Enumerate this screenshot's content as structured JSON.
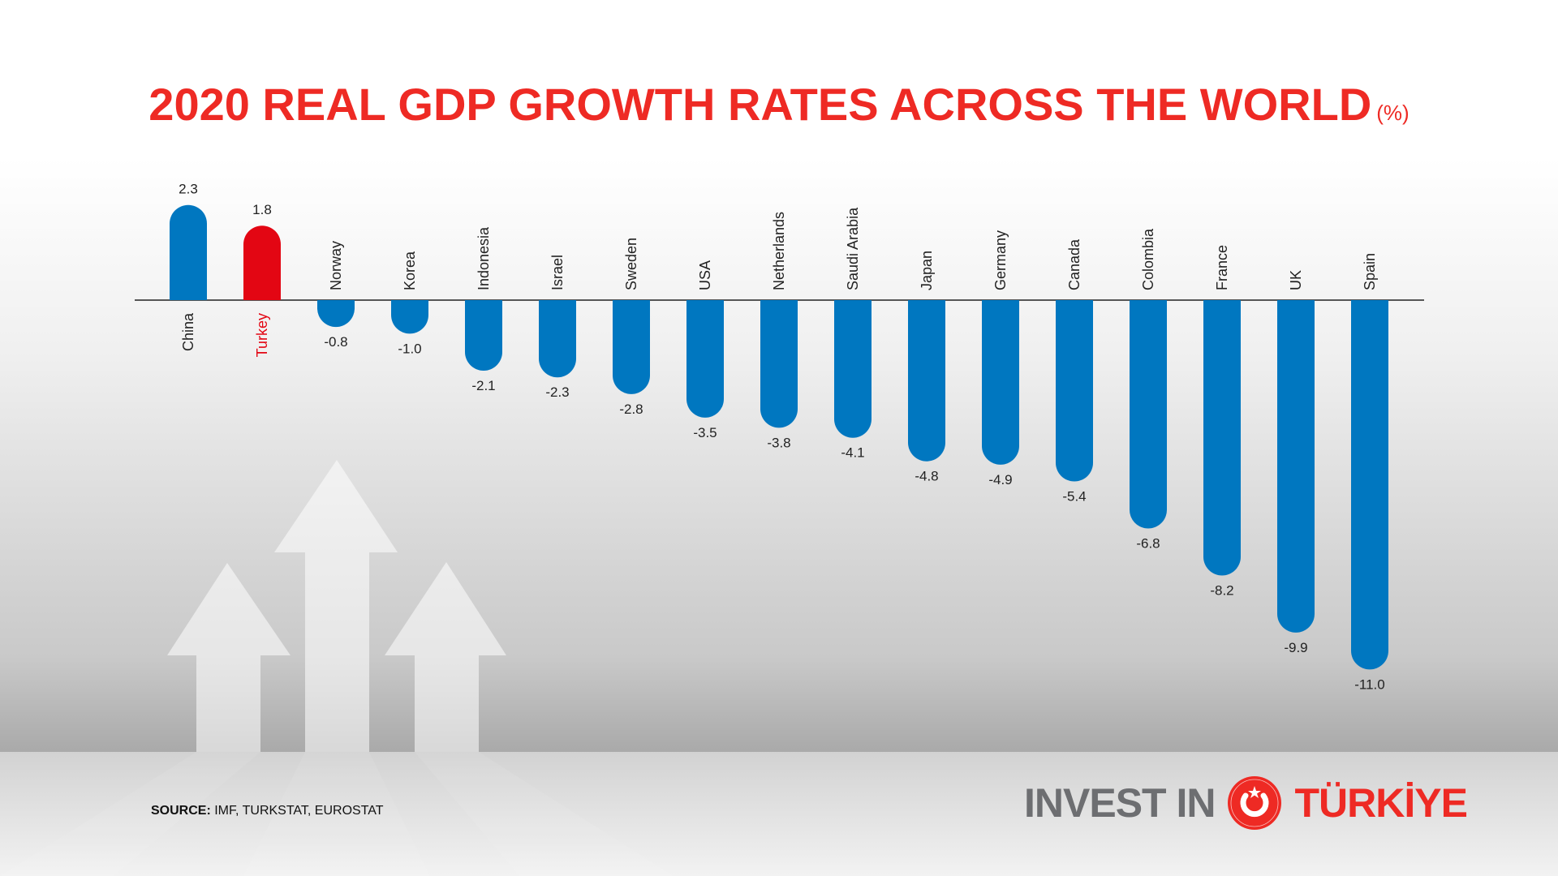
{
  "title": "2020 REAL GDP GROWTH RATES ACROSS THE WORLD",
  "title_unit": "(%)",
  "source": {
    "label": "SOURCE:",
    "text": "IMF, TURKSTAT, EUROSTAT"
  },
  "logo": {
    "left": "INVEST IN",
    "right": "TÜRKİYE"
  },
  "colors": {
    "title": "#ee2a24",
    "bar": "#0077c0",
    "highlight": "#e30613",
    "logo_gray": "#6d6e71"
  },
  "chart_data": {
    "type": "bar",
    "title": "2020 REAL GDP GROWTH RATES ACROSS THE WORLD",
    "ylabel": "(%)",
    "categories": [
      "China",
      "Turkey",
      "Norway",
      "Korea",
      "Indonesia",
      "Israel",
      "Sweden",
      "USA",
      "Netherlands",
      "Saudi Arabia",
      "Japan",
      "Germany",
      "Canada",
      "Colombia",
      "France",
      "UK",
      "Spain"
    ],
    "values": [
      2.3,
      1.8,
      -0.8,
      -1.0,
      -2.1,
      -2.3,
      -2.8,
      -3.5,
      -3.8,
      -4.1,
      -4.8,
      -4.9,
      -5.4,
      -6.8,
      -8.2,
      -9.9,
      -11.0
    ],
    "value_labels": [
      "2.3",
      "1.8",
      "-0.8",
      "-1.0",
      "-2.1",
      "-2.3",
      "-2.8",
      "-3.5",
      "-3.8",
      "-4.1",
      "-4.8",
      "-4.9",
      "-5.4",
      "-6.8",
      "-8.2",
      "-9.9",
      "-11.0"
    ],
    "highlight": "Turkey",
    "grid": false,
    "legend": "none"
  }
}
